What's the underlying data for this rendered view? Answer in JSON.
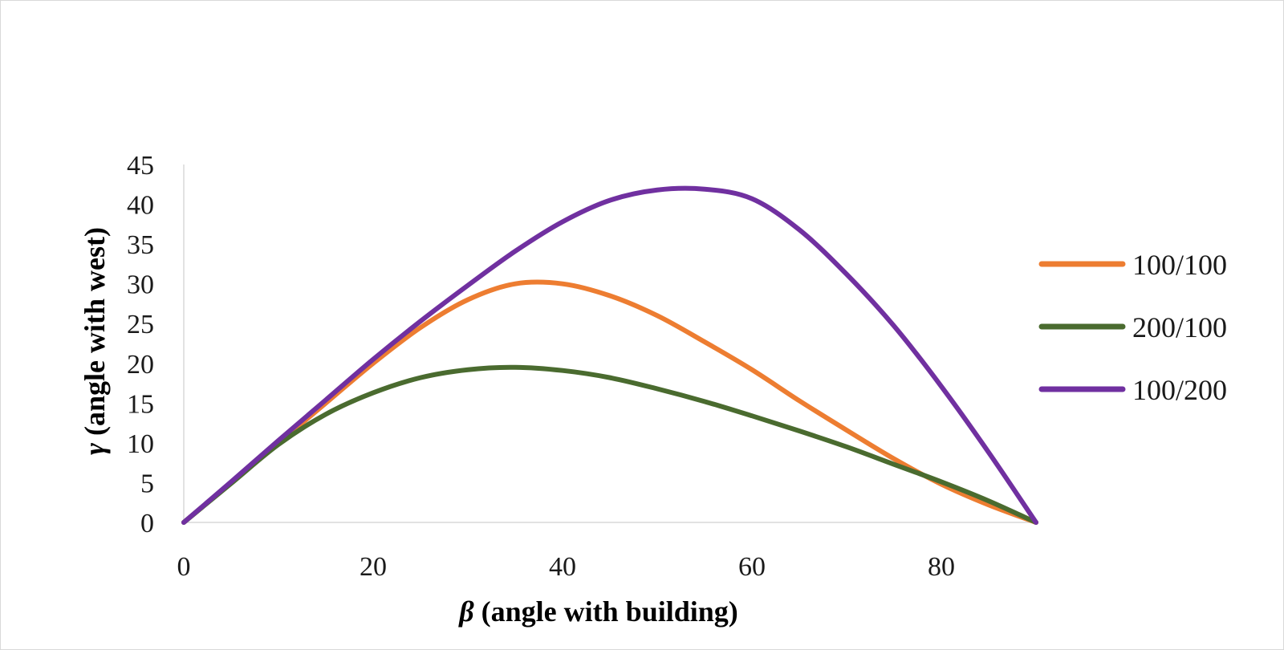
{
  "chart_data": {
    "type": "line",
    "title": "",
    "xlabel": {
      "symbol": "β",
      "text": " (angle with building)"
    },
    "ylabel": {
      "symbol": "γ",
      "text": " (angle with west)"
    },
    "xlim": [
      0,
      90
    ],
    "ylim": [
      0,
      45
    ],
    "xticks": [
      "0",
      "20",
      "40",
      "60",
      "80"
    ],
    "yticks": [
      "0",
      "5",
      "10",
      "15",
      "20",
      "25",
      "30",
      "35",
      "40",
      "45"
    ],
    "grid": false,
    "legend_position": "right",
    "x": [
      0,
      5,
      10,
      15,
      20,
      25,
      30,
      35,
      40,
      45,
      50,
      55,
      60,
      65,
      70,
      75,
      80,
      85,
      90
    ],
    "series": [
      {
        "name": "100/100",
        "color": "#ED7D31",
        "values": [
          0,
          5,
          10,
          15,
          20,
          24.5,
          28,
          30,
          30,
          28.5,
          26,
          22.7,
          19.2,
          15.3,
          11.6,
          8,
          4.8,
          2.2,
          0
        ]
      },
      {
        "name": "200/100",
        "color": "#4A6B2F",
        "values": [
          0,
          4.9,
          9.8,
          13.6,
          16.3,
          18.2,
          19.2,
          19.5,
          19.1,
          18.2,
          16.8,
          15.2,
          13.4,
          11.5,
          9.5,
          7.3,
          5.1,
          2.7,
          0
        ]
      },
      {
        "name": "100/200",
        "color": "#7030A0",
        "values": [
          0,
          5.1,
          10.3,
          15.4,
          20.5,
          25.3,
          29.8,
          34.1,
          37.8,
          40.5,
          41.8,
          41.9,
          40.7,
          36.8,
          31.2,
          24.7,
          17.1,
          8.8,
          0
        ]
      }
    ]
  }
}
